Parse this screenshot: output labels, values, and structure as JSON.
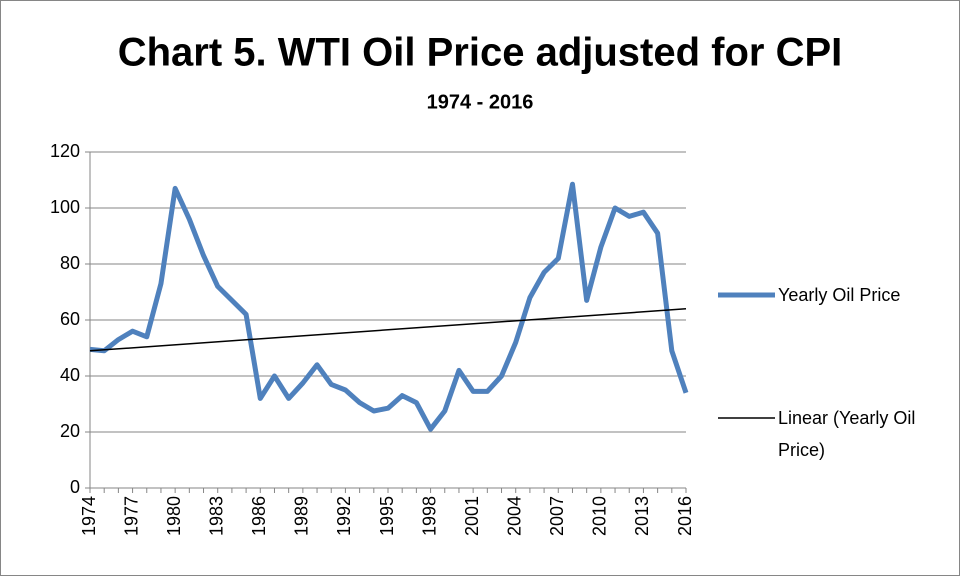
{
  "chart_data": {
    "type": "line",
    "title": "Chart 5. WTI Oil Price adjusted for CPI",
    "subtitle": "1974 - 2016",
    "categories": [
      "1974",
      null,
      null,
      "1977",
      null,
      null,
      "1980",
      null,
      null,
      "1983",
      null,
      null,
      "1986",
      null,
      null,
      "1989",
      null,
      null,
      "1992",
      null,
      null,
      "1995",
      null,
      null,
      "1998",
      null,
      null,
      "2001",
      null,
      null,
      "2004",
      null,
      null,
      "2007",
      null,
      null,
      "2010",
      null,
      null,
      "2013",
      null,
      null,
      "2016"
    ],
    "series": [
      {
        "name": "Yearly Oil Price",
        "color": "#4f81bd",
        "values": [
          49.5,
          49,
          53,
          56,
          54,
          73,
          107,
          96,
          83,
          72,
          67,
          62,
          32,
          40,
          32,
          37.5,
          44,
          37,
          35,
          30.5,
          27.5,
          28.5,
          33,
          30.5,
          21,
          27.5,
          42,
          34.5,
          34.5,
          40,
          52,
          68,
          77,
          82,
          108.5,
          67,
          86,
          100,
          97,
          98.5,
          91,
          49,
          34
        ]
      }
    ],
    "trendline": {
      "name": "Linear (Yearly Oil Price)",
      "color": "#000000",
      "values": [
        49,
        64
      ]
    },
    "ylim": [
      0,
      120
    ],
    "yticks": [
      0,
      20,
      40,
      60,
      80,
      100,
      120
    ],
    "grid": true,
    "legend": "right"
  }
}
